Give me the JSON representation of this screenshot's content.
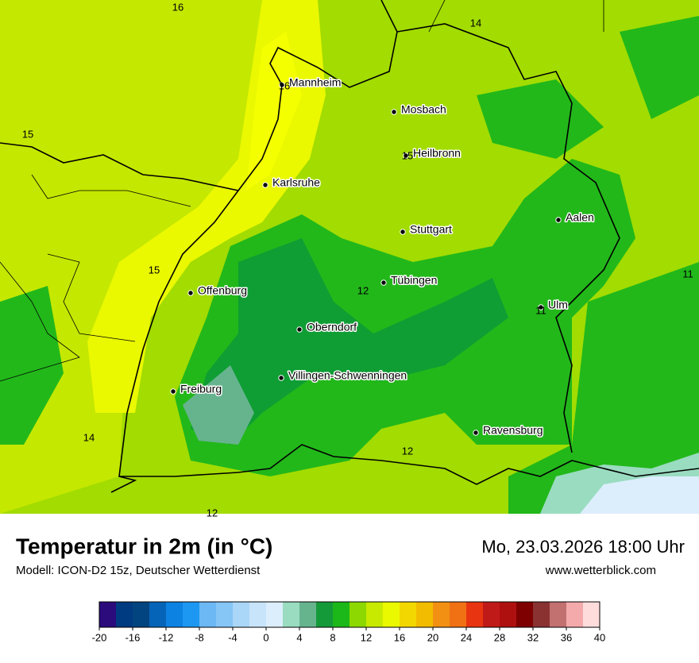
{
  "map": {
    "cities": [
      "Mannheim",
      "Mosbach",
      "Heilbronn",
      "Karlsruhe",
      "Stuttgart",
      "Aalen",
      "Tübingen",
      "Offenburg",
      "Ulm",
      "Oberndorf",
      "Villingen-Schwenningen",
      "Freiburg",
      "Ravensburg"
    ],
    "contour_labels": [
      16,
      14,
      16,
      15,
      15,
      15,
      12,
      11,
      11,
      14,
      12,
      12
    ]
  },
  "footer": {
    "title": "Temperatur in 2m (in °C)",
    "subtitle": "Modell: ICON-D2 15z, Deutscher Wetterdienst",
    "datetime": "Mo, 23.03.2026 18:00 Uhr",
    "website": "www.wetterblick.com"
  },
  "colorbar": {
    "bounds": [
      -20,
      -18,
      -16,
      -14,
      -12,
      -10,
      -8,
      -6,
      -4,
      -2,
      0,
      2,
      4,
      6,
      8,
      10,
      12,
      14,
      16,
      18,
      20,
      22,
      24,
      26,
      28,
      30,
      32,
      34,
      36,
      38,
      40
    ],
    "colors": [
      "#2c0b7c",
      "#003a80",
      "#02447f",
      "#0664b8",
      "#0c82e2",
      "#1c98f2",
      "#6cb8f5",
      "#86c6f6",
      "#aad6f8",
      "#c8e4fa",
      "#dceefc",
      "#9adcc0",
      "#66b48e",
      "#159a3a",
      "#1cb81a",
      "#8cd800",
      "#c8ea00",
      "#eaf800",
      "#f2d800",
      "#f2bc00",
      "#f29014",
      "#f07014",
      "#e83410",
      "#c01a18",
      "#ae1010",
      "#7e0000",
      "#8a3232",
      "#c27070",
      "#f4aaaa",
      "#ffdcdc"
    ],
    "ticks": [
      -20,
      -16,
      -12,
      -8,
      -4,
      0,
      4,
      8,
      12,
      16,
      20,
      24,
      28,
      32,
      36,
      40
    ]
  }
}
